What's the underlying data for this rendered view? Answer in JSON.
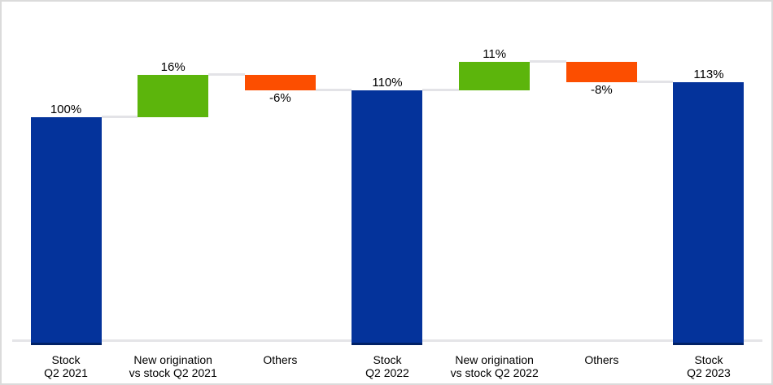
{
  "chart_data": {
    "type": "bar",
    "subtype": "waterfall",
    "title": "",
    "xlabel": "",
    "ylabel": "",
    "legend": false,
    "gridlines": false,
    "axis": {
      "baseline_visible": true,
      "y_min_displayed": 15,
      "y_max_displayed": 130
    },
    "steps": [
      {
        "category": "Stock\nQ2 2021",
        "value": 100,
        "display": "100%",
        "role": "total",
        "start": 0,
        "end": 100,
        "label_position": "above"
      },
      {
        "category": "New origination\nvs stock Q2 2021",
        "value": 16,
        "display": "16%",
        "role": "increase",
        "start": 100,
        "end": 116,
        "label_position": "above"
      },
      {
        "category": "Others",
        "value": -6,
        "display": "-6%",
        "role": "decrease",
        "start": 116,
        "end": 110,
        "label_position": "below"
      },
      {
        "category": "Stock\nQ2 2022",
        "value": 110,
        "display": "110%",
        "role": "total",
        "start": 0,
        "end": 110,
        "label_position": "above"
      },
      {
        "category": "New origination\nvs stock Q2 2022",
        "value": 11,
        "display": "11%",
        "role": "increase",
        "start": 110,
        "end": 121,
        "label_position": "above"
      },
      {
        "category": "Others",
        "value": -8,
        "display": "-8%",
        "role": "decrease",
        "start": 121,
        "end": 113,
        "label_position": "below"
      },
      {
        "category": "Stock\nQ2 2023",
        "value": 113,
        "display": "113%",
        "role": "total",
        "start": 0,
        "end": 113,
        "label_position": "above"
      }
    ],
    "colors": {
      "total": "#04339B",
      "increase": "#5CB50C",
      "decrease": "#FC4E00",
      "total_base_underline": "#002166",
      "connector": "#E3E3E7",
      "axis_line": "#E5E5E8",
      "figure_border": "#DBDBDB",
      "label_text": "#000000"
    }
  }
}
